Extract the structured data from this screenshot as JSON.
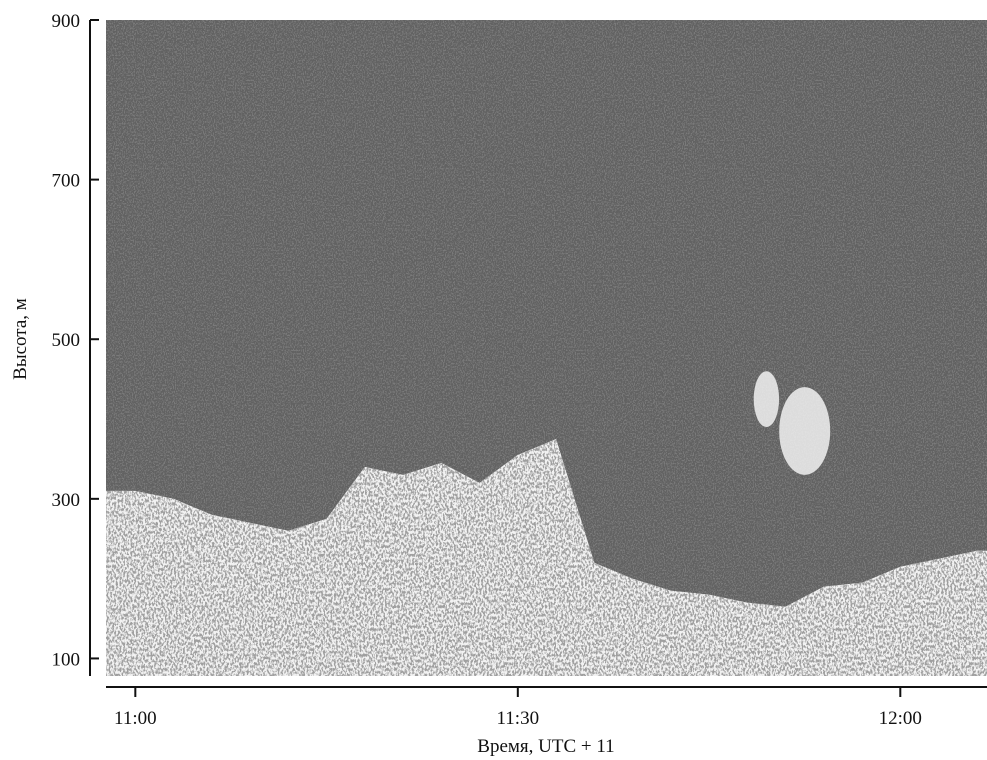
{
  "chart_data": {
    "type": "heatmap",
    "title": "",
    "xlabel": "Время, UTC + 11",
    "ylabel": "Высота, м",
    "x_ticks": [
      "11:00",
      "11:30",
      "12:00"
    ],
    "x_tick_minutes": [
      0,
      30,
      60
    ],
    "xlim_minutes": [
      -2.3,
      66.8
    ],
    "y_ticks": [
      100,
      300,
      500,
      700,
      900
    ],
    "ylim": [
      78,
      900
    ],
    "grid": false,
    "colormap": "grayscale",
    "background_color": "#7a7a7a",
    "speckle_color": "#1e1e1e",
    "echo_color": "#f2f2f2",
    "echo_top_height_m": [
      [
        0,
        310
      ],
      [
        3,
        300
      ],
      [
        6,
        280
      ],
      [
        9,
        270
      ],
      [
        12,
        260
      ],
      [
        15,
        275
      ],
      [
        18,
        340
      ],
      [
        21,
        330
      ],
      [
        24,
        345
      ],
      [
        27,
        320
      ],
      [
        30,
        355
      ],
      [
        33,
        375
      ],
      [
        36,
        220
      ],
      [
        39,
        200
      ],
      [
        42,
        185
      ],
      [
        45,
        180
      ],
      [
        48,
        170
      ],
      [
        51,
        165
      ],
      [
        54,
        190
      ],
      [
        57,
        195
      ],
      [
        60,
        215
      ],
      [
        63,
        225
      ],
      [
        66,
        235
      ]
    ],
    "echo_patches": [
      {
        "minute_start": 50.5,
        "minute_end": 54.5,
        "height_low_m": 330,
        "height_high_m": 440
      },
      {
        "minute_start": 48.5,
        "minute_end": 50.5,
        "height_low_m": 390,
        "height_high_m": 460
      }
    ]
  }
}
